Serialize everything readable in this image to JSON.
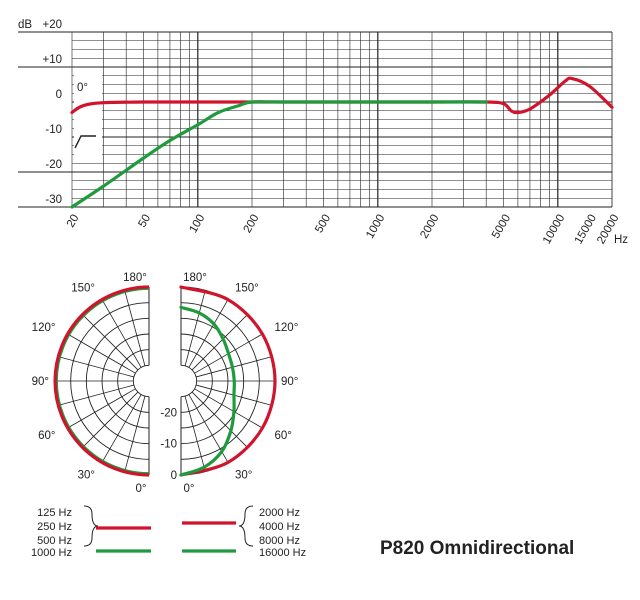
{
  "title": "P820 Omnidirectional",
  "colors": {
    "red": "#d0142c",
    "green": "#1f9a3c",
    "grid": "#222222",
    "ink": "#222222"
  },
  "chart_data": [
    {
      "type": "line",
      "name": "frequency-response",
      "x_scale": "log",
      "xlim": [
        20,
        20000
      ],
      "ylim": [
        -30,
        20
      ],
      "ylabel": "dB",
      "xlabel": "Hz",
      "y_ticks": [
        {
          "v": 20,
          "label": "+20"
        },
        {
          "v": 10,
          "label": "+10"
        },
        {
          "v": 0,
          "label": "0"
        },
        {
          "v": -10,
          "label": "-10"
        },
        {
          "v": -20,
          "label": "-20"
        },
        {
          "v": -30,
          "label": "-30"
        }
      ],
      "x_tick_labels": [
        {
          "v": 20,
          "label": "20"
        },
        {
          "v": 50,
          "label": "50"
        },
        {
          "v": 100,
          "label": "100"
        },
        {
          "v": 200,
          "label": "200"
        },
        {
          "v": 500,
          "label": "500"
        },
        {
          "v": 1000,
          "label": "1000"
        },
        {
          "v": 2000,
          "label": "2000"
        },
        {
          "v": 5000,
          "label": "5000"
        },
        {
          "v": 10000,
          "label": "10000"
        },
        {
          "v": 15000,
          "label": "15000"
        },
        {
          "v": 20000,
          "label": "20000"
        }
      ],
      "grid": true,
      "inset": {
        "angle_label": "0°",
        "icon": "low-cut-filter-icon"
      },
      "series": [
        {
          "color": "red",
          "x": [
            20,
            22,
            25,
            30,
            50,
            100,
            200,
            500,
            1000,
            2000,
            4000,
            5000,
            5500,
            6000,
            7000,
            9000,
            11000,
            12000,
            15000,
            20000
          ],
          "y": [
            -3,
            -1.5,
            -0.6,
            -0.2,
            0,
            0,
            0,
            0,
            0,
            0,
            0,
            -0.5,
            -2.5,
            -3,
            -2,
            2,
            6,
            6.7,
            4.5,
            -1.5
          ]
        },
        {
          "color": "green",
          "x": [
            20,
            30,
            50,
            70,
            100,
            130,
            170,
            200,
            300,
            1000,
            4000
          ],
          "y": [
            -30,
            -24,
            -16,
            -11,
            -6.5,
            -3,
            -1,
            0,
            0,
            0,
            0
          ]
        }
      ]
    },
    {
      "type": "polar",
      "name": "polar-pattern",
      "angle_labels": [
        "0°",
        "30°",
        "60°",
        "90°",
        "120°",
        "150°",
        "180°"
      ],
      "radial_labels": [
        "0",
        "-10",
        "-20"
      ],
      "rings_db": [
        0,
        -5,
        -10,
        -15,
        -20,
        -25
      ],
      "left": {
        "legend_side": "left",
        "series": [
          {
            "color": "red",
            "db": 0
          },
          {
            "color": "green",
            "db": -0.4
          }
        ]
      },
      "right": {
        "legend_side": "right",
        "series": [
          {
            "color": "red",
            "angles": [
              0,
              30,
              60,
              90,
              120,
              150,
              180
            ],
            "db": [
              0,
              0,
              0,
              0,
              0,
              0,
              0
            ]
          },
          {
            "color": "green",
            "angles": [
              0,
              15,
              30,
              45,
              60,
              75,
              90,
              105,
              120,
              135,
              150,
              165,
              180
            ],
            "db": [
              0,
              -1.5,
              -4,
              -7.5,
              -10.5,
              -12.5,
              -13,
              -13,
              -12.5,
              -11,
              -9,
              -7.5,
              -6.5
            ]
          }
        ]
      }
    }
  ],
  "legend": {
    "left": {
      "bracket_items": [
        "125 Hz",
        "250 Hz",
        "500 Hz"
      ],
      "green_item": "1000 Hz"
    },
    "right": {
      "bracket_items": [
        "2000 Hz",
        "4000 Hz",
        "8000 Hz"
      ],
      "green_item": "16000 Hz"
    }
  }
}
